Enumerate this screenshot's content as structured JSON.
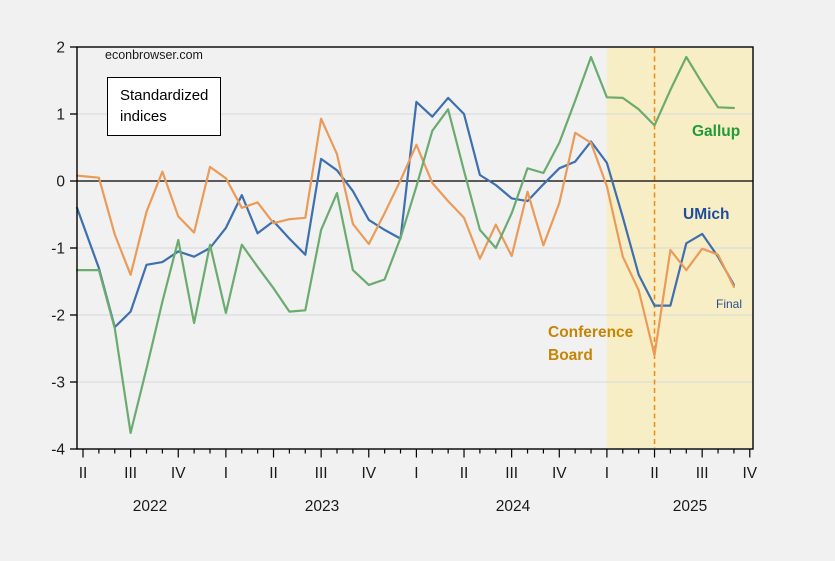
{
  "page": {
    "source_watermark": "econbrowser.com",
    "note": {
      "line1": "Standardized",
      "line2": "indices"
    }
  },
  "chart_data": {
    "type": "line",
    "title": "Standardized indices",
    "source": "econbrowser.com",
    "x_frequency": "monthly",
    "months": [
      "2022-04",
      "2022-05",
      "2022-06",
      "2022-07",
      "2022-08",
      "2022-09",
      "2022-10",
      "2022-11",
      "2022-12",
      "2023-01",
      "2023-02",
      "2023-03",
      "2023-04",
      "2023-05",
      "2023-06",
      "2023-07",
      "2023-08",
      "2023-09",
      "2023-10",
      "2023-11",
      "2023-12",
      "2024-01",
      "2024-02",
      "2024-03",
      "2024-04",
      "2024-05",
      "2024-06",
      "2024-07",
      "2024-08",
      "2024-09",
      "2024-10",
      "2024-11",
      "2024-12",
      "2025-01",
      "2025-02",
      "2025-03",
      "2025-04",
      "2025-05",
      "2025-06",
      "2025-07",
      "2025-08",
      "2025-09"
    ],
    "series": [
      {
        "name": "UMich",
        "color": "#3e6fae",
        "values": [
          -0.4,
          -1.3,
          -2.18,
          -1.95,
          -1.25,
          -1.21,
          -1.05,
          -1.13,
          -1.0,
          -0.7,
          -0.21,
          -0.78,
          -0.6,
          -0.86,
          -1.1,
          0.33,
          0.16,
          -0.15,
          -0.58,
          -0.73,
          -0.86,
          1.18,
          0.96,
          1.24,
          1.0,
          0.09,
          -0.06,
          -0.26,
          -0.3,
          -0.05,
          0.19,
          0.29,
          0.59,
          0.27,
          -0.54,
          -1.4,
          -1.86,
          -1.86,
          -0.93,
          -0.79,
          -1.13,
          -1.55
        ]
      },
      {
        "name": "Conference Board",
        "color": "#eb9b59",
        "values": [
          0.08,
          0.05,
          -0.8,
          -1.4,
          -0.46,
          0.14,
          -0.53,
          -0.77,
          0.21,
          0.04,
          -0.4,
          -0.32,
          -0.63,
          -0.57,
          -0.55,
          0.93,
          0.4,
          -0.64,
          -0.94,
          -0.48,
          0.01,
          0.54,
          -0.03,
          -0.3,
          -0.55,
          -1.16,
          -0.65,
          -1.12,
          -0.16,
          -0.96,
          -0.33,
          0.72,
          0.57,
          -0.08,
          -1.13,
          -1.63,
          -2.6,
          -1.03,
          -1.33,
          -1.01,
          -1.1,
          -1.58
        ]
      },
      {
        "name": "Gallup",
        "color": "#6cab70",
        "values": [
          -1.33,
          -1.33,
          -2.2,
          -3.76,
          -2.8,
          -1.8,
          -0.88,
          -2.12,
          -0.95,
          -1.97,
          -0.95,
          -1.28,
          -1.6,
          -1.95,
          -1.93,
          -0.73,
          -0.18,
          -1.33,
          -1.55,
          -1.47,
          -0.85,
          -0.08,
          0.75,
          1.07,
          0.15,
          -0.73,
          -1.0,
          -0.48,
          0.19,
          0.12,
          0.57,
          1.2,
          1.85,
          1.25,
          1.24,
          1.07,
          0.83,
          1.36,
          1.85,
          1.46,
          1.1,
          1.09
        ]
      }
    ],
    "y_axis": {
      "min": -4,
      "max": 2,
      "tick_labels": [
        "2",
        "1",
        "0",
        "-1",
        "-2",
        "-3",
        "-4"
      ],
      "tick_values": [
        2,
        1,
        0,
        -1,
        -2,
        -3,
        -4
      ],
      "zero_line": true,
      "grid": true
    },
    "x_axis": {
      "quarter_labels": [
        "II",
        "III",
        "IV",
        "I",
        "II",
        "III",
        "IV",
        "I",
        "II",
        "III",
        "IV",
        "I",
        "II",
        "III",
        "IV"
      ],
      "year_labels": [
        "2022",
        "2023",
        "2024",
        "2025"
      ],
      "minor_ticks": "monthly",
      "major_ticks": "quarterly"
    },
    "shaded_region": {
      "start_month": "2025-01",
      "start_index": 33,
      "color": "#f8eec5",
      "meaning": "shaded band through end of sample"
    },
    "dashed_vline": {
      "month": "2025-04",
      "index": 36,
      "color": "#ee8f1c",
      "style": "dashed"
    },
    "annotations": {
      "gallup_label": "Gallup",
      "umich_label": "UMich",
      "cb_label_line1": "Conference",
      "cb_label_line2": "Board",
      "final_label": "Final"
    },
    "colors": {
      "grid": "#d3d8db",
      "axis": "#000000",
      "plot_bg": "#ffffff",
      "outer_bg": "#f0f1f0",
      "gallup_text": "#219a38",
      "umich_text": "#1d4e9e",
      "cb_text": "#c78504",
      "final_text": "#2a4d8f"
    }
  }
}
